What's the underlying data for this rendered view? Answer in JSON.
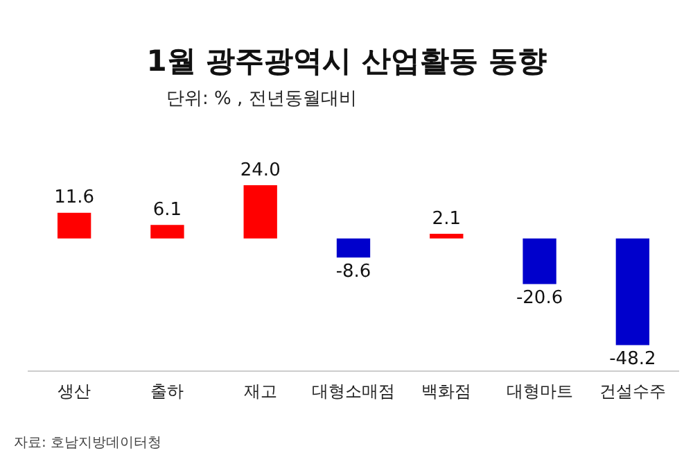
{
  "chart_data": {
    "type": "bar",
    "title": "1월 광주광역시 산업활동 동향",
    "subtitle": "단위: % , 전년동월대비",
    "annotations": [
      "자료: 호남지방데이터청"
    ],
    "categories": [
      "생산",
      "출하",
      "재고",
      "대형소매점",
      "백화점",
      "대형마트",
      "건설수주"
    ],
    "values": [
      11.6,
      6.1,
      24.0,
      -8.6,
      2.1,
      -20.6,
      -48.2
    ],
    "colors": [
      "#ff0000",
      "#ff0000",
      "#ff0000",
      "#0000cc",
      "#ff0000",
      "#0000cc",
      "#0000cc"
    ],
    "value_labels": [
      "11.6",
      "6.1",
      "24.0",
      "-8.6",
      "2.1",
      "-20.6",
      "-48.2"
    ],
    "grid": false,
    "legend": false
  }
}
